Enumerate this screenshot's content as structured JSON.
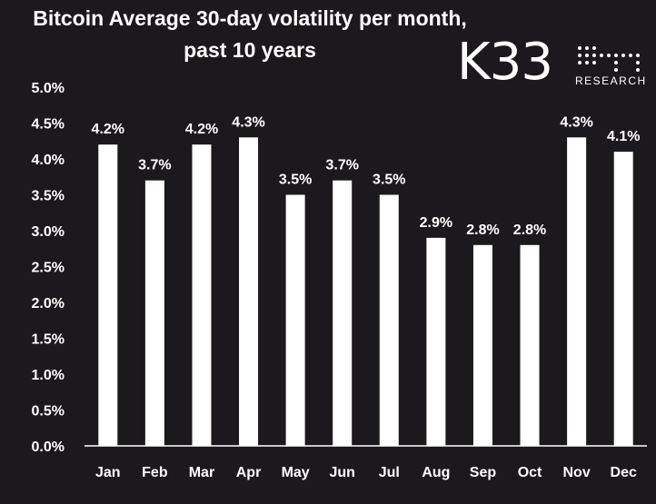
{
  "chart_data": {
    "type": "bar",
    "title": "Bitcoin Average 30-day volatility per month,",
    "subtitle": "past 10 years",
    "categories": [
      "Jan",
      "Feb",
      "Mar",
      "Apr",
      "May",
      "Jun",
      "Jul",
      "Aug",
      "Sep",
      "Oct",
      "Nov",
      "Dec"
    ],
    "values": [
      4.2,
      3.7,
      4.2,
      4.3,
      3.5,
      3.7,
      3.5,
      2.9,
      2.8,
      2.8,
      4.3,
      4.1
    ],
    "data_labels": [
      "4.2%",
      "3.7%",
      "4.2%",
      "4.3%",
      "3.5%",
      "3.7%",
      "3.5%",
      "2.9%",
      "2.8%",
      "2.8%",
      "4.3%",
      "4.1%"
    ],
    "y_ticks": [
      0.0,
      0.5,
      1.0,
      1.5,
      2.0,
      2.5,
      3.0,
      3.5,
      4.0,
      4.5,
      5.0
    ],
    "y_tick_labels": [
      "0.0%",
      "0.5%",
      "1.0%",
      "1.5%",
      "2.0%",
      "2.5%",
      "3.0%",
      "3.5%",
      "4.0%",
      "4.5%",
      "5.0%"
    ],
    "ylim": [
      0,
      5
    ],
    "xlabel": "",
    "ylabel": "",
    "grid": false,
    "legend": "none",
    "bar_color": "#ffffff",
    "background_color": "#1b191e"
  },
  "logo": {
    "text": "K33",
    "subtext": "RESEARCH"
  }
}
